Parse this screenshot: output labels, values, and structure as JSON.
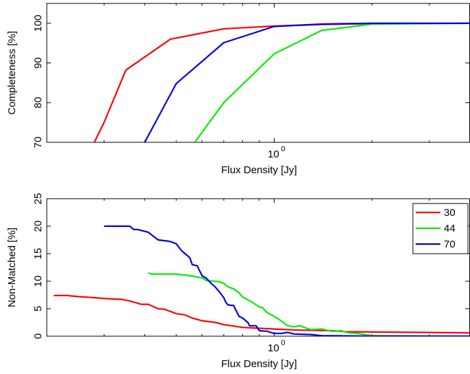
{
  "chart_data": [
    {
      "type": "line",
      "xlabel": "Flux Density [Jy]",
      "ylabel": "Completeness [%]",
      "xscale": "log",
      "xlim": [
        0.2,
        4.0
      ],
      "ylim": [
        70,
        105
      ],
      "yticks": [
        70,
        80,
        90,
        100
      ],
      "xtick_labels": [
        {
          "x": 1.0,
          "base": "10",
          "exp": "0"
        }
      ],
      "grid": false,
      "legend": false,
      "series": [
        {
          "color": "#ff0000",
          "x": [
            0.28,
            0.3,
            0.35,
            0.48,
            0.7,
            1.0,
            1.4,
            2.0,
            4.0
          ],
          "y": [
            70,
            75,
            88.2,
            96,
            98.6,
            99.3,
            99.7,
            99.9,
            100
          ]
        },
        {
          "color": "#00ee00",
          "x": [
            0.57,
            0.7,
            1.0,
            1.4,
            2.0,
            4.0
          ],
          "y": [
            70,
            80,
            92.3,
            98.2,
            99.8,
            100
          ]
        },
        {
          "color": "#0000dd",
          "x": [
            0.4,
            0.5,
            0.7,
            1.0,
            1.4,
            2.0,
            4.0
          ],
          "y": [
            70,
            84.8,
            95.1,
            99.2,
            99.8,
            100,
            100
          ]
        }
      ]
    },
    {
      "type": "line",
      "xlabel": "Flux Density [Jy]",
      "ylabel": "Non-Matched [%]",
      "xscale": "log",
      "xlim": [
        0.2,
        4.0
      ],
      "ylim": [
        0,
        25
      ],
      "yticks": [
        0,
        5,
        10,
        15,
        20,
        25
      ],
      "xtick_labels": [
        {
          "x": 1.0,
          "base": "10",
          "exp": "0"
        }
      ],
      "grid": false,
      "legend": {
        "position": "top-right",
        "entries": [
          "30",
          "44",
          "70"
        ]
      },
      "series": [
        {
          "name": "30",
          "color": "#ff0000",
          "x": [
            0.21,
            0.23,
            0.25,
            0.28,
            0.31,
            0.34,
            0.36,
            0.37,
            0.39,
            0.41,
            0.44,
            0.46,
            0.48,
            0.5,
            0.53,
            0.56,
            0.6,
            0.66,
            0.7,
            0.8,
            1.0,
            1.2,
            1.5,
            1.6,
            1.65,
            1.75,
            4.0
          ],
          "y": [
            7.4,
            7.4,
            7.2,
            7.0,
            6.8,
            6.7,
            6.4,
            6.2,
            5.8,
            5.8,
            5.0,
            4.9,
            4.5,
            4.1,
            3.9,
            3.3,
            2.8,
            2.5,
            2.1,
            1.6,
            1.3,
            1.1,
            1.0,
            0.9,
            0.8,
            0.8,
            0.6
          ]
        },
        {
          "name": "44",
          "color": "#00ee00",
          "x": [
            0.41,
            0.42,
            0.5,
            0.55,
            0.6,
            0.62,
            0.65,
            0.68,
            0.7,
            0.72,
            0.75,
            0.78,
            0.8,
            0.85,
            0.9,
            0.92,
            0.95,
            0.98,
            1.0,
            1.05,
            1.1,
            1.15,
            1.2,
            1.25,
            1.3,
            1.4,
            1.5,
            1.55,
            1.6,
            1.7,
            1.8,
            2.0,
            4.0
          ],
          "y": [
            11.5,
            11.3,
            11.3,
            11.0,
            10.6,
            10.1,
            10.0,
            9.9,
            9.6,
            9.0,
            8.6,
            7.9,
            7.1,
            6.3,
            5.3,
            5.2,
            4.3,
            3.9,
            3.6,
            2.8,
            1.9,
            1.7,
            1.9,
            1.5,
            1.2,
            1.3,
            0.9,
            0.9,
            1.0,
            0.6,
            0.5,
            0.1,
            0.0
          ]
        },
        {
          "name": "70",
          "color": "#0000dd",
          "x": [
            0.3,
            0.32,
            0.33,
            0.36,
            0.37,
            0.38,
            0.41,
            0.44,
            0.47,
            0.48,
            0.5,
            0.52,
            0.55,
            0.56,
            0.58,
            0.6,
            0.62,
            0.64,
            0.66,
            0.68,
            0.7,
            0.71,
            0.72,
            0.74,
            0.75,
            0.78,
            0.8,
            0.83,
            0.84,
            0.86,
            0.88,
            0.9,
            0.95,
            1.0,
            1.05,
            1.1,
            1.15,
            1.3,
            1.4,
            2.0,
            4.0
          ],
          "y": [
            20.0,
            20.0,
            20.0,
            20.0,
            19.4,
            19.4,
            18.9,
            17.5,
            17.3,
            17.2,
            16.8,
            15.5,
            14.3,
            13.0,
            12.8,
            11.0,
            10.5,
            9.6,
            8.9,
            8.0,
            7.0,
            6.2,
            5.7,
            5.6,
            5.6,
            3.6,
            3.3,
            2.5,
            1.9,
            1.9,
            1.9,
            1.0,
            0.9,
            0.5,
            0.5,
            0.7,
            0.4,
            0.3,
            0.1,
            0.0,
            0.0
          ]
        }
      ]
    }
  ]
}
